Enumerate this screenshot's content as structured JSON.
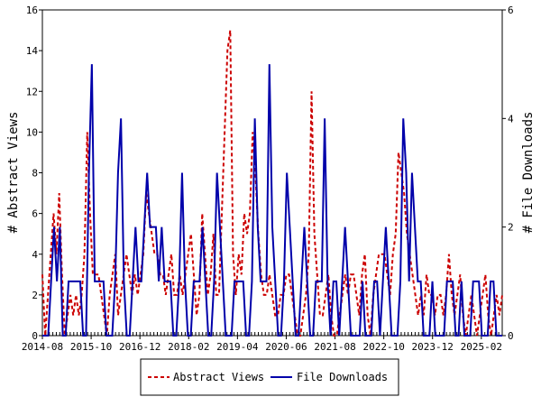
{
  "chart_data": {
    "type": "line",
    "title": "",
    "xlabel": "",
    "ylabel_left": "# Abstract Views",
    "ylabel_right": "# File Downloads",
    "ylim_left": [
      0,
      16
    ],
    "ylim_right": [
      0,
      6
    ],
    "yticks_left": [
      "0",
      "2",
      "4",
      "6",
      "8",
      "10",
      "12",
      "14",
      "16"
    ],
    "yticks_right": [
      "0",
      "2",
      "4",
      "6"
    ],
    "x_tick_labels": [
      "2014-08",
      "2015-10",
      "2016-12",
      "2018-02",
      "2019-04",
      "2020-06",
      "2021-08",
      "2022-10",
      "2023-12",
      "2025-02"
    ],
    "x_range": [
      0,
      132
    ],
    "legend": {
      "position": "bottom"
    },
    "colors": {
      "abstract_views": "#cc0000",
      "file_downloads": "#0000aa"
    },
    "series": [
      {
        "name": "Abstract Views",
        "axis": "left",
        "style": "dashed",
        "values": [
          3,
          0,
          2,
          4,
          6,
          4,
          7,
          3,
          0,
          1,
          2,
          1,
          2,
          1,
          2,
          4,
          10,
          6,
          3,
          3,
          3,
          2,
          1,
          0,
          2,
          3,
          4,
          1,
          2,
          3,
          4,
          3,
          2,
          3,
          2,
          3,
          4,
          7,
          6,
          5,
          4,
          4,
          3,
          3,
          2,
          3,
          4,
          2,
          2,
          3,
          2,
          3,
          4,
          5,
          3,
          1,
          2,
          6,
          4,
          2,
          3,
          5,
          2,
          2,
          6,
          10,
          14,
          15,
          4,
          2,
          4,
          3,
          6,
          5,
          6,
          10,
          8,
          5,
          3,
          2,
          2,
          3,
          2,
          1,
          1,
          2,
          2,
          3,
          3,
          2,
          1,
          0,
          0,
          1,
          2,
          4,
          12,
          5,
          3,
          1,
          1,
          2,
          3,
          1,
          0,
          0,
          1,
          2,
          3,
          2,
          3,
          3,
          2,
          1,
          3,
          4,
          1,
          0,
          2,
          3,
          4,
          4,
          4,
          3,
          2,
          4,
          5,
          9,
          8,
          7,
          5,
          4,
          3,
          2,
          1,
          2,
          1,
          3,
          2,
          2,
          1,
          2,
          2,
          1,
          2,
          4,
          2,
          1,
          2,
          3,
          1,
          0,
          1,
          2,
          1,
          0,
          1,
          2,
          3,
          1,
          0,
          1,
          2,
          1,
          2
        ]
      },
      {
        "name": "File Downloads",
        "axis": "right",
        "style": "solid",
        "values": [
          0,
          0,
          0,
          1,
          2,
          1,
          2,
          0,
          0,
          1,
          1,
          1,
          1,
          1,
          0,
          0,
          3,
          5,
          1,
          1,
          1,
          1,
          0,
          0,
          0,
          1,
          3,
          4,
          1,
          0,
          0,
          1,
          2,
          1,
          1,
          2,
          3,
          2,
          2,
          2,
          1,
          2,
          1,
          1,
          1,
          0,
          0,
          1,
          3,
          1,
          0,
          0,
          1,
          1,
          1,
          2,
          1,
          0,
          0,
          1,
          3,
          2,
          1,
          0,
          0,
          0,
          1,
          1,
          1,
          1,
          0,
          0,
          1,
          4,
          2,
          1,
          1,
          1,
          5,
          2,
          1,
          0,
          0,
          1,
          3,
          2,
          1,
          0,
          0,
          1,
          2,
          1,
          0,
          0,
          1,
          1,
          1,
          4,
          1,
          0,
          1,
          1,
          0,
          1,
          2,
          1,
          0,
          0,
          0,
          0,
          1,
          0,
          0,
          0,
          1,
          1,
          0,
          1,
          2,
          1,
          0,
          0,
          0,
          1,
          4,
          3,
          1,
          3,
          2,
          1,
          1,
          0,
          0,
          0,
          1,
          0,
          0,
          0,
          0,
          1,
          1,
          1,
          0,
          0,
          1,
          0,
          0,
          0,
          1,
          1,
          1,
          0,
          0,
          0,
          1,
          1,
          0,
          0,
          0
        ]
      }
    ]
  }
}
